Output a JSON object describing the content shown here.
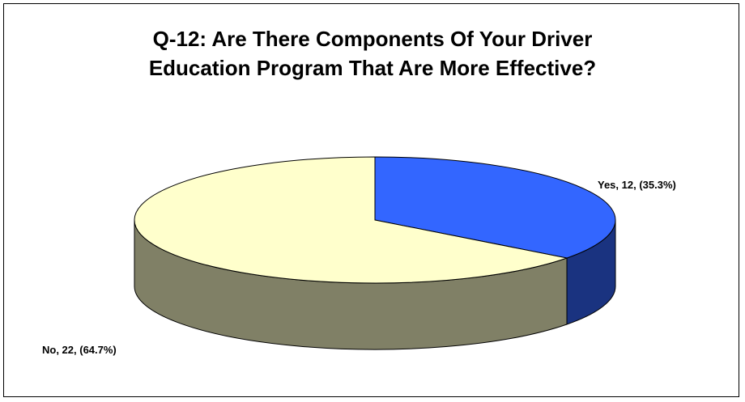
{
  "chart_data": {
    "type": "pie",
    "title": [
      "Q-12: Are There Components Of Your Driver",
      "Education Program That Are More Effective?"
    ],
    "slices": [
      {
        "category": "Yes",
        "value": 12,
        "percent": "35.3%",
        "label": "Yes, 12, (35.3%)",
        "color": "#3366FF",
        "side_color": "#1A3380"
      },
      {
        "category": "No",
        "value": 22,
        "percent": "64.7%",
        "label": "No, 22, (64.7%)",
        "color": "#FFFFCC",
        "side_color": "#808066"
      }
    ],
    "style": "3d",
    "legend": "none"
  }
}
